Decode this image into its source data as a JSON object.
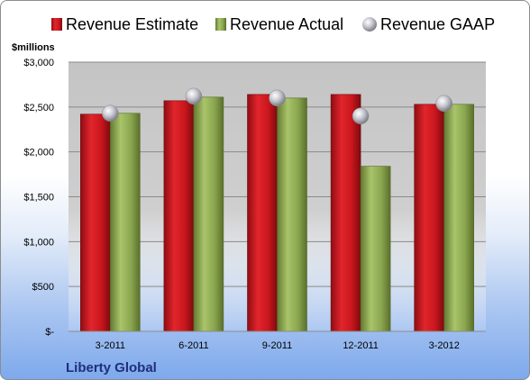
{
  "chart_data": {
    "type": "bar",
    "unit_label": "$millions",
    "company": "Liberty Global",
    "categories": [
      "3-2011",
      "6-2011",
      "9-2011",
      "12-2011",
      "3-2012"
    ],
    "series": [
      {
        "name": "Revenue Estimate",
        "kind": "bar",
        "color": "#c0141c",
        "values": [
          2420,
          2570,
          2640,
          2640,
          2530
        ]
      },
      {
        "name": "Revenue Actual",
        "kind": "bar",
        "color": "#8aa64e",
        "values": [
          2430,
          2610,
          2600,
          1840,
          2530
        ]
      },
      {
        "name": "Revenue GAAP",
        "kind": "marker",
        "color": "#b8b8c0",
        "values": [
          2430,
          2620,
          2600,
          2400,
          2540
        ]
      }
    ],
    "y_ticks": [
      {
        "value": 0,
        "label": "$-"
      },
      {
        "value": 500,
        "label": "$500"
      },
      {
        "value": 1000,
        "label": "$1,000"
      },
      {
        "value": 1500,
        "label": "$1,500"
      },
      {
        "value": 2000,
        "label": "$2,000"
      },
      {
        "value": 2500,
        "label": "$2,500"
      },
      {
        "value": 3000,
        "label": "$3,000"
      }
    ],
    "ylim": [
      0,
      3000
    ],
    "grid": true,
    "legend_position": "top"
  }
}
